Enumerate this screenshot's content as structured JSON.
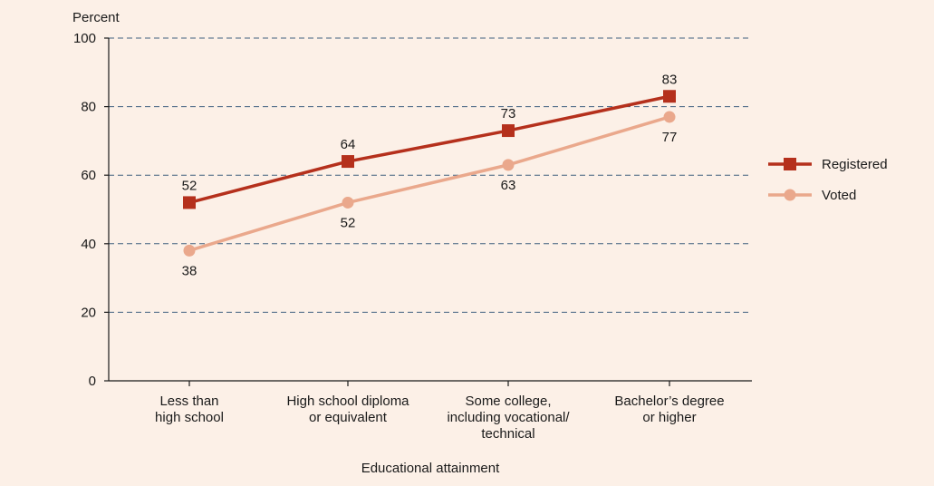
{
  "chart_data": {
    "type": "line",
    "ylabel": "Percent",
    "xlabel": "Educational attainment",
    "ylim": [
      0,
      100
    ],
    "yticks": [
      0,
      20,
      40,
      60,
      80,
      100
    ],
    "grid": "horizontal-dashed",
    "legend_position": "right",
    "categories": [
      [
        "Less than",
        "high school"
      ],
      [
        "High school diploma",
        "or equivalent"
      ],
      [
        "Some college,",
        "including vocational/",
        "technical"
      ],
      [
        "Bachelor’s degree",
        "or higher"
      ]
    ],
    "series": [
      {
        "name": "Registered",
        "values": [
          52,
          64,
          73,
          83
        ],
        "color": "#b5301c",
        "marker": "square",
        "label_position": "above"
      },
      {
        "name": "Voted",
        "values": [
          38,
          52,
          63,
          77
        ],
        "color": "#eaa88c",
        "marker": "circle",
        "label_position": "below"
      }
    ],
    "colors": {
      "background": "#fcf0e7",
      "axis": "#1a1a1a",
      "grid": "#3f5f7f"
    }
  }
}
